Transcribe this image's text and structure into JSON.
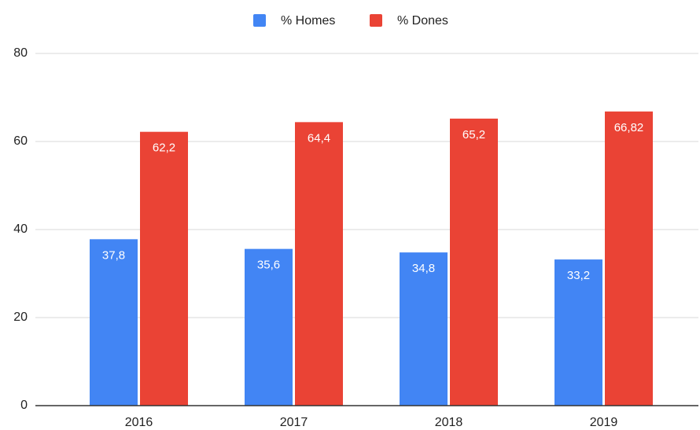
{
  "chart_data": {
    "type": "bar",
    "categories": [
      "2016",
      "2017",
      "2018",
      "2019"
    ],
    "series": [
      {
        "name": "% Homes",
        "color": "#4285f4",
        "values": [
          37.8,
          35.6,
          34.8,
          33.2
        ],
        "value_labels": [
          "37,8",
          "35,6",
          "34,8",
          "33,2"
        ]
      },
      {
        "name": "% Dones",
        "color": "#ea4335",
        "values": [
          62.2,
          64.4,
          65.2,
          66.82
        ],
        "value_labels": [
          "62,2",
          "64,4",
          "65,2",
          "66,82"
        ]
      }
    ],
    "ylim": [
      0,
      80
    ],
    "yticks": [
      0,
      20,
      40,
      60,
      80
    ],
    "grid": true,
    "legend": "top"
  }
}
